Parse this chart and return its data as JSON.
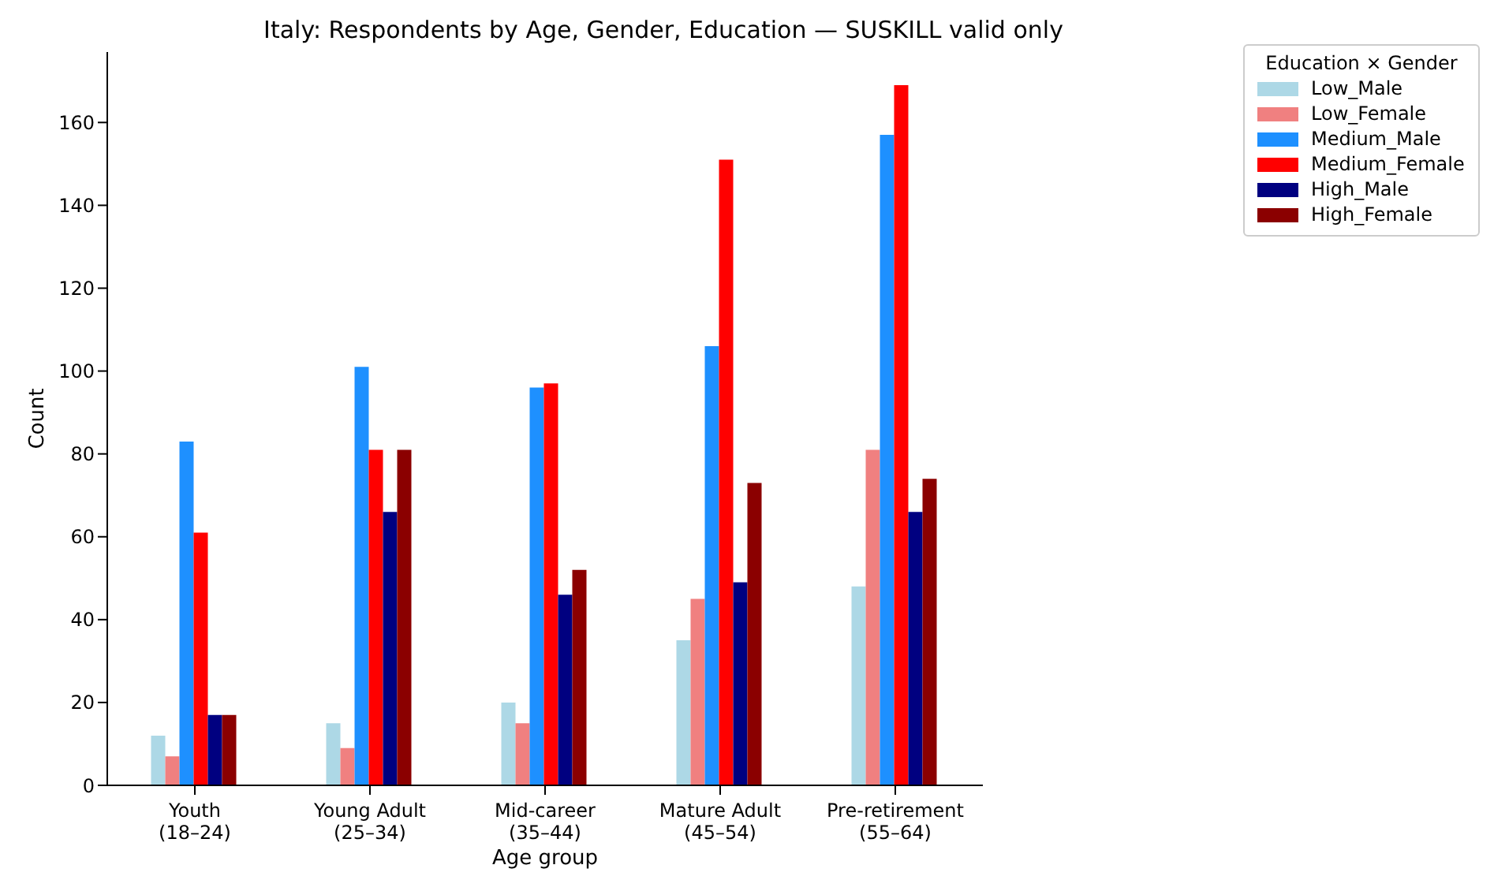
{
  "chart_data": {
    "type": "bar",
    "title": "Italy: Respondents by Age, Gender, Education — SUSKILL valid only",
    "xlabel": "Age group",
    "ylabel": "Count",
    "legend_title": "Education × Gender",
    "categories": [
      "Youth (18–24)",
      "Young Adult (25–34)",
      "Mid-career (35–44)",
      "Mature Adult (45–54)",
      "Pre-retirement (55–64)"
    ],
    "series": [
      {
        "name": "Low_Male",
        "color": "#add8e6",
        "values": [
          12,
          15,
          20,
          35,
          48
        ]
      },
      {
        "name": "Low_Female",
        "color": "#f08080",
        "values": [
          7,
          9,
          15,
          45,
          81
        ]
      },
      {
        "name": "Medium_Male",
        "color": "#1e90ff",
        "values": [
          83,
          101,
          96,
          106,
          157
        ]
      },
      {
        "name": "Medium_Female",
        "color": "#ff0000",
        "values": [
          61,
          81,
          97,
          151,
          169
        ]
      },
      {
        "name": "High_Male",
        "color": "#000080",
        "values": [
          17,
          66,
          46,
          49,
          66
        ]
      },
      {
        "name": "High_Female",
        "color": "#8b0000",
        "values": [
          17,
          81,
          52,
          73,
          74
        ]
      }
    ],
    "ylim": [
      0,
      177
    ],
    "yticks": [
      0,
      20,
      40,
      60,
      80,
      100,
      120,
      140,
      160
    ],
    "grid": false,
    "legend": "top right"
  }
}
